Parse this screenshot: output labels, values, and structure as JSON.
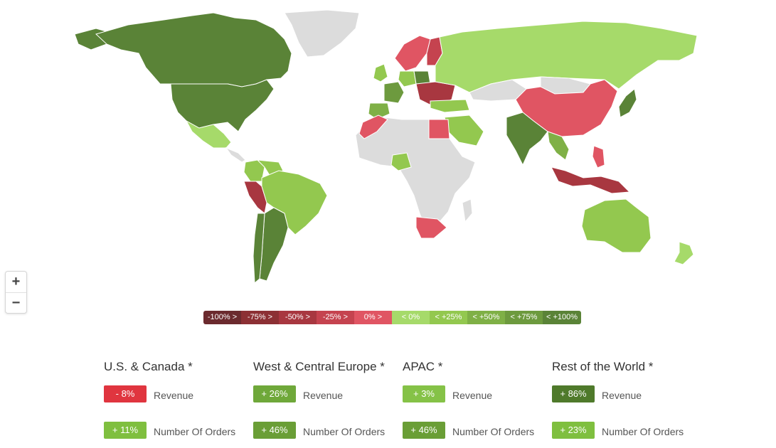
{
  "colors": {
    "ocean": "#ffffff",
    "no_data": "#dcdcdc",
    "border": "#ffffff"
  },
  "zoom": {
    "in_icon": "plus-icon",
    "out_icon": "minus-icon",
    "in_label": "+",
    "out_label": "−"
  },
  "legend": [
    {
      "label": "-100% >",
      "color": "#6b2a2e"
    },
    {
      "label": "-75% >",
      "color": "#8c3034"
    },
    {
      "label": "-50% >",
      "color": "#a83740"
    },
    {
      "label": "-25% >",
      "color": "#c5434f"
    },
    {
      "label": "0% >",
      "color": "#e05563"
    },
    {
      "label": "< 0%",
      "color": "#a6da6a"
    },
    {
      "label": "< +25%",
      "color": "#93c84f"
    },
    {
      "label": "< +50%",
      "color": "#7fb046"
    },
    {
      "label": "< +75%",
      "color": "#6d9a3e"
    },
    {
      "label": "< +100%",
      "color": "#5a8337"
    }
  ],
  "country_classes": {
    "canada": "< +100%",
    "usa": "< +100%",
    "alaska": "< +100%",
    "greenland": "no_data",
    "mexico": "< 0%",
    "colombia": "< +25%",
    "venezuela": "< +25%",
    "peru": "-50% >",
    "brazil": "< +25%",
    "argentina": "< +100%",
    "chile": "< +100%",
    "russia": "< 0%",
    "scandinavia": "0% >",
    "finland": "-25% >",
    "uk": "< +25%",
    "france": "< +75%",
    "iberia": "< +50%",
    "poland": "< +100%",
    "germany": "< +25%",
    "balkans": "-50% >",
    "turkey": "< +25%",
    "egypt": "0% >",
    "saudi_arabia": "< +25%",
    "morocco": "0% >",
    "nigeria": "< +25%",
    "south_africa": "0% >",
    "india": "< +100%",
    "china": "0% >",
    "mongolia": "no_data",
    "japan": "< +100%",
    "southeast_asia": "< +50%",
    "indonesia": "-50% >",
    "philippines": "0% >",
    "australia": "< +25%",
    "new_zealand": "< 0%"
  },
  "regions": [
    {
      "title": "U.S. & Canada *",
      "revenue": "- 8%",
      "revenue_color": "#e0353f",
      "orders": "+ 11%",
      "orders_color": "#7fbf3f"
    },
    {
      "title": "West & Central Europe *",
      "revenue": "+ 26%",
      "revenue_color": "#6fa83a",
      "orders": "+ 46%",
      "orders_color": "#6a9e36"
    },
    {
      "title": "APAC *",
      "revenue": "+ 3%",
      "revenue_color": "#85c247",
      "orders": "+ 46%",
      "orders_color": "#6a9e36"
    },
    {
      "title": "Rest of the World *",
      "revenue": "+ 86%",
      "revenue_color": "#4f7a2b",
      "orders": "+ 23%",
      "orders_color": "#7fbf3f"
    }
  ],
  "labels": {
    "revenue": "Revenue",
    "orders": "Number Of Orders"
  }
}
